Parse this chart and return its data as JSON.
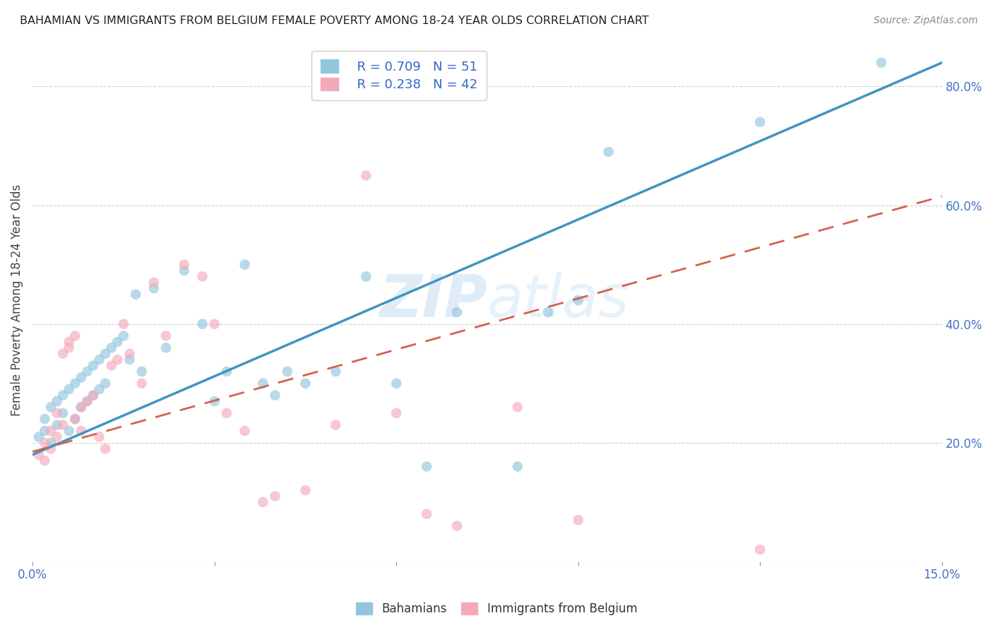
{
  "title": "BAHAMIAN VS IMMIGRANTS FROM BELGIUM FEMALE POVERTY AMONG 18-24 YEAR OLDS CORRELATION CHART",
  "source": "Source: ZipAtlas.com",
  "ylabel": "Female Poverty Among 18-24 Year Olds",
  "x_min": 0.0,
  "x_max": 0.15,
  "y_min": 0.0,
  "y_max": 0.88,
  "x_ticks": [
    0.0,
    0.03,
    0.06,
    0.09,
    0.12,
    0.15
  ],
  "x_tick_labels": [
    "0.0%",
    "",
    "",
    "",
    "",
    "15.0%"
  ],
  "y_ticks": [
    0.0,
    0.2,
    0.4,
    0.6,
    0.8
  ],
  "y_tick_labels": [
    "",
    "20.0%",
    "40.0%",
    "60.0%",
    "80.0%"
  ],
  "blue_color": "#92c5de",
  "pink_color": "#f4a9bb",
  "blue_line_color": "#4393c3",
  "pink_line_color": "#d6604d",
  "grid_color": "#d0d0d0",
  "watermark_color": "#d0e4f5",
  "legend_R1": "R = 0.709",
  "legend_N1": "N = 51",
  "legend_R2": "R = 0.238",
  "legend_N2": "N = 42",
  "blue_line_x": [
    0.0,
    0.15
  ],
  "blue_line_y": [
    0.18,
    0.84
  ],
  "pink_line_x": [
    0.0,
    0.15
  ],
  "pink_line_y": [
    0.185,
    0.615
  ],
  "bahamians_x": [
    0.001,
    0.002,
    0.002,
    0.003,
    0.003,
    0.004,
    0.004,
    0.005,
    0.005,
    0.006,
    0.006,
    0.007,
    0.007,
    0.008,
    0.008,
    0.009,
    0.009,
    0.01,
    0.01,
    0.011,
    0.011,
    0.012,
    0.012,
    0.013,
    0.014,
    0.015,
    0.016,
    0.017,
    0.018,
    0.02,
    0.022,
    0.025,
    0.028,
    0.03,
    0.032,
    0.035,
    0.038,
    0.04,
    0.042,
    0.045,
    0.05,
    0.055,
    0.06,
    0.065,
    0.07,
    0.08,
    0.085,
    0.09,
    0.095,
    0.12,
    0.14
  ],
  "bahamians_y": [
    0.21,
    0.24,
    0.22,
    0.26,
    0.2,
    0.27,
    0.23,
    0.28,
    0.25,
    0.29,
    0.22,
    0.3,
    0.24,
    0.31,
    0.26,
    0.32,
    0.27,
    0.33,
    0.28,
    0.34,
    0.29,
    0.35,
    0.3,
    0.36,
    0.37,
    0.38,
    0.34,
    0.45,
    0.32,
    0.46,
    0.36,
    0.49,
    0.4,
    0.27,
    0.32,
    0.5,
    0.3,
    0.28,
    0.32,
    0.3,
    0.32,
    0.48,
    0.3,
    0.16,
    0.42,
    0.16,
    0.42,
    0.44,
    0.69,
    0.74,
    0.84
  ],
  "belgium_x": [
    0.001,
    0.002,
    0.002,
    0.003,
    0.003,
    0.004,
    0.004,
    0.005,
    0.005,
    0.006,
    0.006,
    0.007,
    0.007,
    0.008,
    0.008,
    0.009,
    0.01,
    0.011,
    0.012,
    0.013,
    0.014,
    0.015,
    0.016,
    0.018,
    0.02,
    0.022,
    0.025,
    0.028,
    0.03,
    0.032,
    0.035,
    0.038,
    0.04,
    0.045,
    0.05,
    0.055,
    0.06,
    0.065,
    0.07,
    0.08,
    0.09,
    0.12
  ],
  "belgium_y": [
    0.18,
    0.2,
    0.17,
    0.22,
    0.19,
    0.25,
    0.21,
    0.35,
    0.23,
    0.36,
    0.37,
    0.38,
    0.24,
    0.26,
    0.22,
    0.27,
    0.28,
    0.21,
    0.19,
    0.33,
    0.34,
    0.4,
    0.35,
    0.3,
    0.47,
    0.38,
    0.5,
    0.48,
    0.4,
    0.25,
    0.22,
    0.1,
    0.11,
    0.12,
    0.23,
    0.65,
    0.25,
    0.08,
    0.06,
    0.26,
    0.07,
    0.02
  ]
}
